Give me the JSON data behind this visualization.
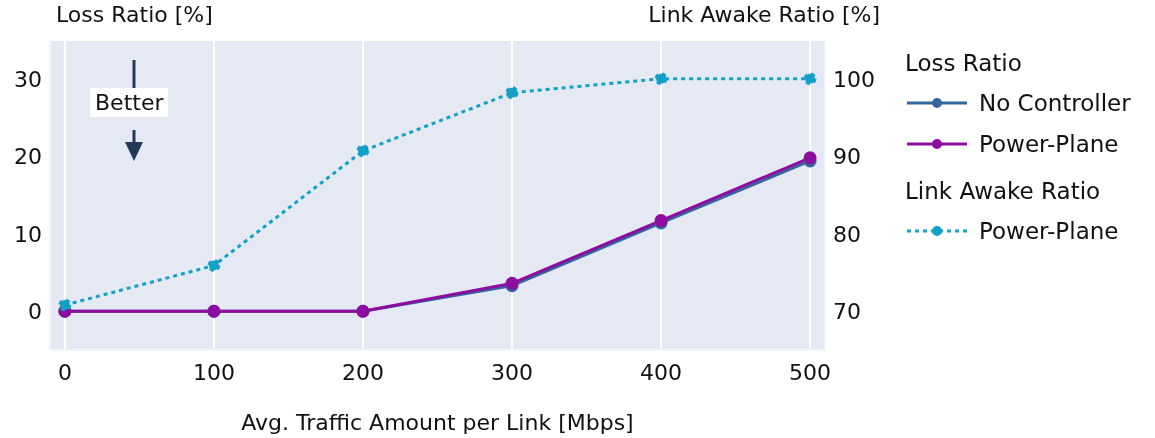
{
  "chart_data": {
    "type": "line",
    "xlabel": "Avg. Traffic Amount per Link [Mbps]",
    "ylabel": "Loss Ratio [%]",
    "y2label": "Link Awake Ratio [%]",
    "x": [
      0,
      100,
      200,
      300,
      400,
      500
    ],
    "xlim": [
      -10,
      510
    ],
    "xticks": [
      0,
      100,
      200,
      300,
      400,
      500
    ],
    "ylim": [
      -5,
      35
    ],
    "yticks": [
      0,
      10,
      20,
      30
    ],
    "y2lim": [
      65,
      105
    ],
    "y2ticks": [
      70,
      80,
      90,
      100
    ],
    "series": [
      {
        "name": "No Controller",
        "color": "#33669c",
        "values": [
          0,
          0,
          0,
          3.3,
          11.4,
          19.4
        ],
        "line_style": "solid"
      },
      {
        "name": "Power-Plane",
        "color": "#8e0ca0",
        "values": [
          0,
          0,
          0,
          3.6,
          11.7,
          19.8
        ],
        "line_style": "solid"
      },
      {
        "name": "Power-Plane",
        "color": "#13a0c8",
        "values": [
          70.8,
          75.9,
          90.7,
          98.2,
          100,
          100
        ],
        "line_style": "dotted",
        "axis": "y2"
      }
    ],
    "marker": "circle",
    "grid": true,
    "legend": "right",
    "annotations": [
      "Better",
      "Loss Ratio",
      "Link Awake Ratio"
    ]
  }
}
